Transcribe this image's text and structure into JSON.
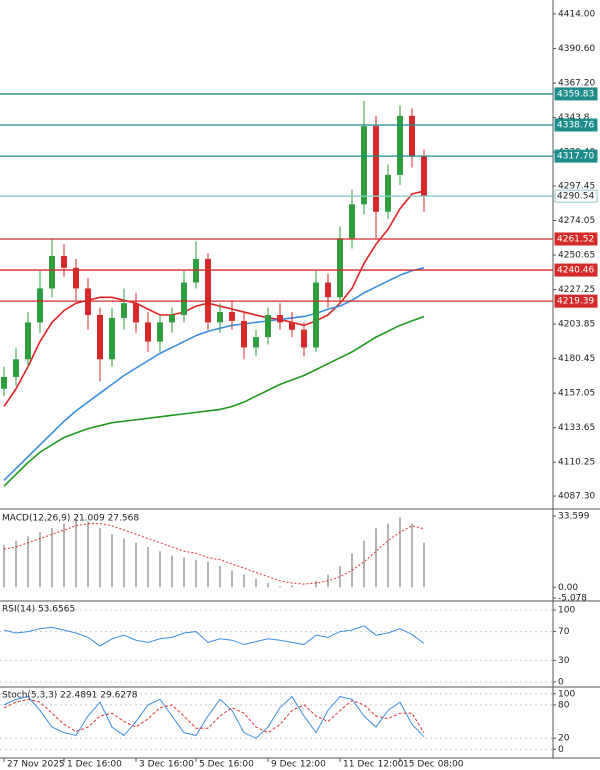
{
  "chart_data": [
    {
      "type": "candlestick",
      "up_color": "#2e9e3e",
      "down_color": "#d42a2a",
      "categories": [
        "27 Nov 2025",
        null,
        null,
        null,
        null,
        "1 Dec 16:00",
        null,
        null,
        null,
        null,
        null,
        "3 Dec 16:00",
        null,
        null,
        null,
        null,
        "5 Dec 16:00",
        null,
        null,
        null,
        null,
        null,
        "9 Dec 12:00",
        null,
        null,
        null,
        null,
        null,
        "11 Dec 12:00",
        null,
        null,
        null,
        null,
        "15 Dec 08:00",
        null,
        null
      ],
      "open": [
        4160,
        4168,
        4180,
        4205,
        4228,
        4250,
        4242,
        4228,
        4210,
        4180,
        4208,
        4218,
        4205,
        4192,
        4205,
        4210,
        4232,
        4248,
        4205,
        4212,
        4206,
        4188,
        4195,
        4210,
        4205,
        4200,
        4188,
        4232,
        4222,
        4262,
        4285,
        4338,
        4280,
        4305,
        4345,
        4318
      ],
      "high": [
        4175,
        4188,
        4212,
        4240,
        4262,
        4258,
        4248,
        4235,
        4215,
        4215,
        4228,
        4225,
        4212,
        4210,
        4215,
        4240,
        4260,
        4252,
        4218,
        4220,
        4212,
        4200,
        4215,
        4218,
        4212,
        4205,
        4240,
        4238,
        4270,
        4295,
        4355,
        4345,
        4312,
        4352,
        4350,
        4322
      ],
      "low": [
        4155,
        4162,
        4175,
        4198,
        4222,
        4236,
        4220,
        4200,
        4165,
        4175,
        4200,
        4198,
        4185,
        4185,
        4198,
        4205,
        4228,
        4200,
        4198,
        4200,
        4180,
        4182,
        4190,
        4200,
        4195,
        4182,
        4185,
        4215,
        4218,
        4255,
        4278,
        4262,
        4275,
        4298,
        4310,
        4280
      ],
      "close": [
        4168,
        4180,
        4205,
        4228,
        4250,
        4242,
        4228,
        4210,
        4180,
        4208,
        4218,
        4205,
        4192,
        4205,
        4210,
        4232,
        4248,
        4205,
        4212,
        4206,
        4188,
        4195,
        4210,
        4205,
        4200,
        4188,
        4232,
        4222,
        4262,
        4285,
        4338,
        4280,
        4305,
        4345,
        4318,
        4290.54
      ],
      "overlays": [
        {
          "color": "#e02020",
          "values": [
            4148,
            4160,
            4175,
            4192,
            4205,
            4213,
            4218,
            4220,
            4222,
            4222,
            4220,
            4218,
            4214,
            4210,
            4210,
            4212,
            4216,
            4218,
            4216,
            4214,
            4212,
            4210,
            4208,
            4207,
            4205,
            4203,
            4206,
            4210,
            4218,
            4228,
            4245,
            4258,
            4268,
            4282,
            4292,
            4294
          ]
        },
        {
          "color": "#3a8ee0",
          "values": [
            4098,
            4106,
            4114,
            4122,
            4130,
            4138,
            4145,
            4151,
            4157,
            4163,
            4169,
            4174,
            4179,
            4184,
            4188,
            4192,
            4196,
            4199,
            4201,
            4203,
            4204,
            4205,
            4206,
            4207,
            4208,
            4209,
            4211,
            4214,
            4216,
            4220,
            4225,
            4229,
            4233,
            4237,
            4240,
            4242
          ]
        },
        {
          "color": "#1e9a1e",
          "values": [
            4094,
            4102,
            4110,
            4117,
            4122,
            4127,
            4130,
            4133,
            4135,
            4137,
            4138,
            4139,
            4140,
            4141,
            4142,
            4143,
            4144,
            4145,
            4146,
            4148,
            4151,
            4155,
            4159,
            4163,
            4166,
            4169,
            4173,
            4177,
            4181,
            4185,
            4190,
            4195,
            4199,
            4203,
            4206,
            4209
          ]
        }
      ],
      "levels": [
        {
          "value": 4359.83,
          "color": "#1f8c8c"
        },
        {
          "value": 4338.76,
          "color": "#1f8c8c"
        },
        {
          "value": {
            "value": 4317.7,
            "label": "4317.70"
          },
          "color": "#1f8c8c"
        },
        {
          "value": 4290.54,
          "color": "#8fc9c9",
          "box": "#ffffff"
        },
        {
          "value": 4261.52,
          "color": "#d42a2a"
        },
        {
          "value": 4240.46,
          "color": "#d42a2a"
        },
        {
          "value": 4219.39,
          "color": "#d42a2a"
        }
      ],
      "ylim": [
        4079.2,
        4420.1
      ],
      "yticks": [
        {
          "value": 4414,
          "label": "4414.00"
        },
        {
          "value": 4390.6,
          "label": "4390.60"
        },
        {
          "value": 4367.2,
          "label": "4367.20"
        },
        4343.8,
        {
          "value": 4320.4,
          "label": "4320.40"
        },
        4297.45,
        4274.05,
        4250.65,
        4227.25,
        4203.85,
        4180.45,
        4157.05,
        4133.65,
        4110.25,
        {
          "value": 4087.3,
          "label": "4087.30"
        }
      ]
    },
    {
      "type": "macd",
      "title": "MACD(12,26,9) 21.009 27.568",
      "histogram": {
        "color": "#b4b4b4",
        "values": [
          20,
          22,
          24,
          26,
          28,
          30,
          32,
          31,
          28,
          25,
          23,
          21,
          19,
          17,
          15,
          14,
          13,
          12,
          10,
          8,
          6,
          4,
          2,
          0.5,
          1,
          0,
          3,
          6,
          10,
          16,
          22,
          28,
          30,
          33,
          30,
          21.009
        ]
      },
      "signal": {
        "color": "#e03030",
        "values": [
          18,
          19,
          21,
          23,
          25,
          27,
          29,
          30,
          30,
          29,
          27,
          25,
          23,
          21,
          19,
          17,
          16,
          14,
          13,
          11,
          9,
          7,
          5,
          3,
          2,
          1.5,
          2,
          3,
          5,
          8,
          12,
          17,
          22,
          26,
          29,
          27.568
        ]
      },
      "ylim": [
        -6,
        35.5
      ],
      "yticks": [
        33.599,
        {
          "value": 0,
          "label": "0.00"
        },
        -5.078
      ]
    },
    {
      "type": "line",
      "title": "RSI(14) 53.6565",
      "series": [
        {
          "color": "#3a8ee0",
          "values": [
            72,
            68,
            70,
            74,
            76,
            72,
            68,
            62,
            50,
            60,
            65,
            58,
            55,
            60,
            62,
            68,
            70,
            55,
            60,
            58,
            52,
            56,
            60,
            58,
            55,
            52,
            65,
            62,
            70,
            72,
            78,
            65,
            68,
            74,
            66,
            53.6565
          ]
        }
      ],
      "ylim": [
        -5.6,
        109.7
      ],
      "yticks": [
        100,
        70,
        30,
        0
      ]
    },
    {
      "type": "line",
      "title": "Stoch(5,3,3) 22.4891 29.6278",
      "series": [
        {
          "color": "#3a8ee0",
          "values": [
            80,
            90,
            95,
            70,
            40,
            30,
            25,
            60,
            85,
            40,
            25,
            50,
            80,
            90,
            60,
            30,
            25,
            60,
            90,
            70,
            30,
            20,
            40,
            75,
            95,
            60,
            30,
            70,
            95,
            90,
            60,
            40,
            70,
            85,
            45,
            22.4891
          ]
        },
        {
          "color": "#e03030",
          "dashed": true,
          "values": [
            75,
            85,
            90,
            85,
            65,
            45,
            32,
            40,
            60,
            65,
            50,
            40,
            55,
            75,
            80,
            60,
            38,
            38,
            60,
            75,
            65,
            40,
            30,
            45,
            70,
            80,
            60,
            50,
            70,
            88,
            80,
            60,
            55,
            65,
            65,
            29.6278
          ]
        }
      ],
      "ylim": [
        -13.8,
        108.6
      ],
      "yticks": [
        100,
        80,
        20,
        0
      ]
    }
  ]
}
